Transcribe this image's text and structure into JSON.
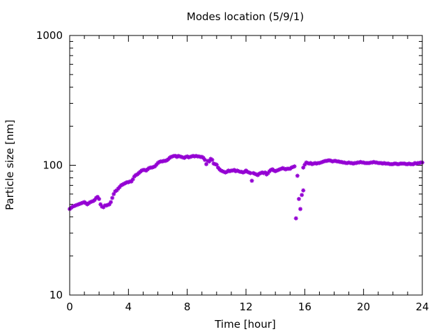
{
  "chart_data": {
    "type": "scatter",
    "title": "Modes location (5/9/1)",
    "xlabel": "Time [hour]",
    "ylabel": "Particle size [nm]",
    "xlim": [
      0,
      24
    ],
    "ylim": [
      10,
      1000
    ],
    "yscale": "log",
    "xticks": [
      0,
      4,
      8,
      12,
      16,
      20,
      24
    ],
    "yticks": [
      10,
      100,
      1000
    ],
    "grid": false,
    "marker_color": "#9400d3",
    "series": [
      {
        "points": [
          [
            0.0,
            46
          ],
          [
            0.1,
            47
          ],
          [
            0.2,
            48
          ],
          [
            0.3,
            48.5
          ],
          [
            0.4,
            49
          ],
          [
            0.5,
            49.5
          ],
          [
            0.6,
            50
          ],
          [
            0.7,
            50.5
          ],
          [
            0.8,
            51
          ],
          [
            0.9,
            51.5
          ],
          [
            1.0,
            52
          ],
          [
            1.1,
            51
          ],
          [
            1.2,
            50
          ],
          [
            1.3,
            51
          ],
          [
            1.4,
            52
          ],
          [
            1.5,
            52.5
          ],
          [
            1.6,
            53
          ],
          [
            1.7,
            54
          ],
          [
            1.8,
            56
          ],
          [
            1.9,
            57
          ],
          [
            2.0,
            55
          ],
          [
            2.1,
            50
          ],
          [
            2.2,
            48
          ],
          [
            2.3,
            47.5
          ],
          [
            2.4,
            49
          ],
          [
            2.5,
            49
          ],
          [
            2.6,
            49.5
          ],
          [
            2.7,
            50
          ],
          [
            2.8,
            52
          ],
          [
            2.9,
            56
          ],
          [
            3.0,
            60
          ],
          [
            3.1,
            63
          ],
          [
            3.2,
            64
          ],
          [
            3.3,
            66
          ],
          [
            3.4,
            68
          ],
          [
            3.5,
            70
          ],
          [
            3.6,
            71
          ],
          [
            3.7,
            72
          ],
          [
            3.8,
            73
          ],
          [
            3.9,
            74
          ],
          [
            4.0,
            74
          ],
          [
            4.1,
            75
          ],
          [
            4.2,
            75
          ],
          [
            4.3,
            78
          ],
          [
            4.4,
            82
          ],
          [
            4.5,
            84
          ],
          [
            4.6,
            85
          ],
          [
            4.7,
            87
          ],
          [
            4.8,
            89
          ],
          [
            4.9,
            91
          ],
          [
            5.0,
            92
          ],
          [
            5.1,
            92
          ],
          [
            5.2,
            91
          ],
          [
            5.3,
            93
          ],
          [
            5.4,
            95
          ],
          [
            5.5,
            96
          ],
          [
            5.6,
            96
          ],
          [
            5.7,
            97
          ],
          [
            5.8,
            98
          ],
          [
            5.9,
            101
          ],
          [
            6.0,
            104
          ],
          [
            6.1,
            106
          ],
          [
            6.2,
            107
          ],
          [
            6.3,
            107
          ],
          [
            6.4,
            108
          ],
          [
            6.5,
            108
          ],
          [
            6.6,
            109
          ],
          [
            6.7,
            111
          ],
          [
            6.8,
            114
          ],
          [
            6.9,
            116
          ],
          [
            7.0,
            117
          ],
          [
            7.1,
            118
          ],
          [
            7.2,
            118
          ],
          [
            7.3,
            116
          ],
          [
            7.4,
            118
          ],
          [
            7.5,
            117
          ],
          [
            7.6,
            116
          ],
          [
            7.7,
            115
          ],
          [
            7.8,
            114
          ],
          [
            7.9,
            116
          ],
          [
            8.0,
            117
          ],
          [
            8.1,
            115
          ],
          [
            8.2,
            116
          ],
          [
            8.3,
            117
          ],
          [
            8.4,
            118
          ],
          [
            8.5,
            117
          ],
          [
            8.6,
            118
          ],
          [
            8.7,
            117
          ],
          [
            8.8,
            117
          ],
          [
            8.9,
            116
          ],
          [
            9.0,
            116
          ],
          [
            9.1,
            114
          ],
          [
            9.2,
            110
          ],
          [
            9.3,
            102
          ],
          [
            9.4,
            108
          ],
          [
            9.5,
            107
          ],
          [
            9.6,
            112
          ],
          [
            9.7,
            110
          ],
          [
            9.8,
            103
          ],
          [
            9.9,
            102
          ],
          [
            10.0,
            101
          ],
          [
            10.1,
            96
          ],
          [
            10.2,
            93
          ],
          [
            10.3,
            91
          ],
          [
            10.4,
            90
          ],
          [
            10.5,
            89
          ],
          [
            10.6,
            88
          ],
          [
            10.7,
            89
          ],
          [
            10.8,
            91
          ],
          [
            10.9,
            90
          ],
          [
            11.0,
            91
          ],
          [
            11.1,
            91
          ],
          [
            11.2,
            92
          ],
          [
            11.3,
            90
          ],
          [
            11.4,
            91
          ],
          [
            11.5,
            90
          ],
          [
            11.6,
            89
          ],
          [
            11.7,
            89
          ],
          [
            11.8,
            88
          ],
          [
            11.9,
            89
          ],
          [
            12.0,
            91
          ],
          [
            12.1,
            89
          ],
          [
            12.2,
            88
          ],
          [
            12.3,
            87
          ],
          [
            12.4,
            76
          ],
          [
            12.5,
            87
          ],
          [
            12.6,
            86
          ],
          [
            12.7,
            85
          ],
          [
            12.8,
            84
          ],
          [
            12.9,
            86
          ],
          [
            13.0,
            87
          ],
          [
            13.1,
            88
          ],
          [
            13.2,
            87
          ],
          [
            13.3,
            88
          ],
          [
            13.4,
            85
          ],
          [
            13.5,
            87
          ],
          [
            13.6,
            90
          ],
          [
            13.7,
            92
          ],
          [
            13.8,
            93
          ],
          [
            13.9,
            91
          ],
          [
            14.0,
            90
          ],
          [
            14.1,
            91
          ],
          [
            14.2,
            92
          ],
          [
            14.3,
            93
          ],
          [
            14.4,
            94
          ],
          [
            14.5,
            95
          ],
          [
            14.6,
            94
          ],
          [
            14.7,
            93
          ],
          [
            14.8,
            94
          ],
          [
            14.9,
            94
          ],
          [
            15.0,
            94
          ],
          [
            15.1,
            96
          ],
          [
            15.2,
            97
          ],
          [
            15.3,
            98
          ],
          [
            15.4,
            39
          ],
          [
            15.5,
            83
          ],
          [
            15.6,
            55
          ],
          [
            15.7,
            46
          ],
          [
            15.8,
            59
          ],
          [
            15.9,
            64
          ],
          [
            15.9,
            96
          ],
          [
            16.0,
            101
          ],
          [
            16.1,
            105
          ],
          [
            16.2,
            104
          ],
          [
            16.3,
            103
          ],
          [
            16.4,
            104
          ],
          [
            16.5,
            102
          ],
          [
            16.6,
            103
          ],
          [
            16.7,
            104
          ],
          [
            16.8,
            103
          ],
          [
            16.9,
            104
          ],
          [
            17.0,
            104
          ],
          [
            17.1,
            105
          ],
          [
            17.2,
            106
          ],
          [
            17.3,
            107
          ],
          [
            17.4,
            108
          ],
          [
            17.5,
            108
          ],
          [
            17.6,
            109
          ],
          [
            17.7,
            109
          ],
          [
            17.8,
            108
          ],
          [
            17.9,
            107
          ],
          [
            18.0,
            108
          ],
          [
            18.1,
            108
          ],
          [
            18.2,
            107
          ],
          [
            18.3,
            107
          ],
          [
            18.4,
            106
          ],
          [
            18.5,
            106
          ],
          [
            18.6,
            105
          ],
          [
            18.7,
            105
          ],
          [
            18.8,
            104
          ],
          [
            18.9,
            104
          ],
          [
            19.0,
            105
          ],
          [
            19.1,
            104
          ],
          [
            19.2,
            104
          ],
          [
            19.3,
            103
          ],
          [
            19.4,
            104
          ],
          [
            19.5,
            104
          ],
          [
            19.6,
            105
          ],
          [
            19.7,
            105
          ],
          [
            19.8,
            106
          ],
          [
            19.9,
            105
          ],
          [
            20.0,
            105
          ],
          [
            20.1,
            104
          ],
          [
            20.2,
            104
          ],
          [
            20.3,
            104
          ],
          [
            20.4,
            104
          ],
          [
            20.5,
            105
          ],
          [
            20.6,
            105
          ],
          [
            20.7,
            106
          ],
          [
            20.8,
            105
          ],
          [
            20.9,
            105
          ],
          [
            21.0,
            104
          ],
          [
            21.1,
            104
          ],
          [
            21.2,
            104
          ],
          [
            21.3,
            103
          ],
          [
            21.4,
            104
          ],
          [
            21.5,
            103
          ],
          [
            21.6,
            103
          ],
          [
            21.7,
            103
          ],
          [
            21.8,
            102
          ],
          [
            21.9,
            102
          ],
          [
            22.0,
            102
          ],
          [
            22.1,
            103
          ],
          [
            22.2,
            103
          ],
          [
            22.3,
            102
          ],
          [
            22.4,
            102
          ],
          [
            22.5,
            103
          ],
          [
            22.6,
            103
          ],
          [
            22.7,
            103
          ],
          [
            22.8,
            103
          ],
          [
            22.9,
            102
          ],
          [
            23.0,
            102
          ],
          [
            23.1,
            103
          ],
          [
            23.2,
            102
          ],
          [
            23.3,
            102
          ],
          [
            23.4,
            102
          ],
          [
            23.5,
            104
          ],
          [
            23.6,
            103
          ],
          [
            23.7,
            104
          ],
          [
            23.8,
            104
          ],
          [
            23.9,
            105
          ],
          [
            24.0,
            105
          ]
        ]
      }
    ]
  }
}
